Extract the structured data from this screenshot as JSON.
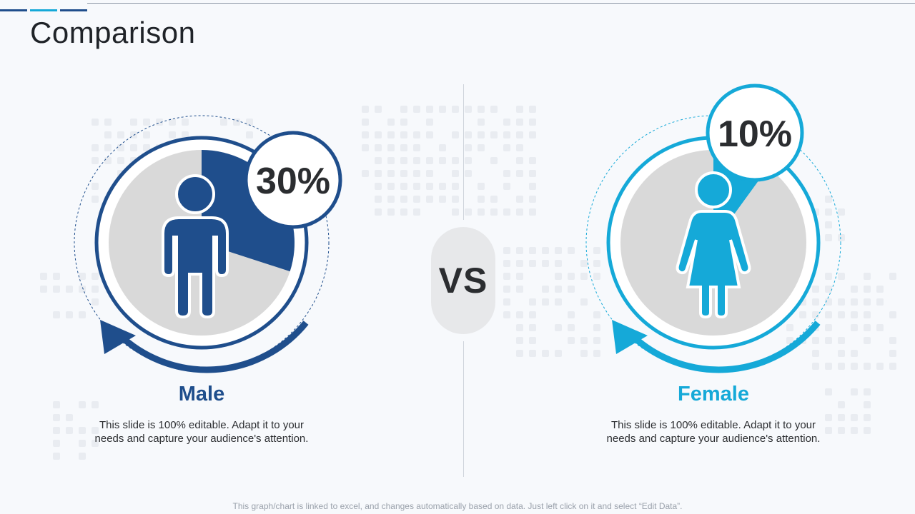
{
  "title": "Comparison",
  "vs_label": "VS",
  "colors": {
    "male": "#1f4e8c",
    "female": "#15a9d8",
    "disc": "#d9d9d9",
    "text": "#2b2d30"
  },
  "male": {
    "label": "Male",
    "percent_label": "30%",
    "percent_value": 30,
    "description": "This slide is 100% editable. Adapt it to your needs and capture your audience's attention.",
    "icon": "male-person-icon"
  },
  "female": {
    "label": "Female",
    "percent_label": "10%",
    "percent_value": 10,
    "description": "This slide is 100% editable. Adapt it to your needs and capture your audience's attention.",
    "icon": "female-person-icon"
  },
  "footer": "This graph/chart is linked to excel, and changes automatically based on data. Just left click on it and select “Edit Data”."
}
